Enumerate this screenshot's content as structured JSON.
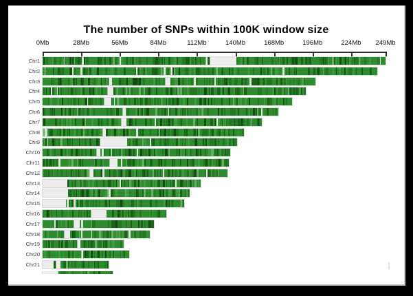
{
  "chart_data": {
    "type": "heatmap",
    "subtype": "chromosome-snp-density",
    "title": "The number of SNPs within 100K window size",
    "orientation": "horizontal",
    "legend": "none",
    "grid": false,
    "value_encoding": "green stripe darkness = SNP count per 100Kb window; light gray = windows with no SNPs",
    "x_axis": {
      "unit": "Mb",
      "range_mb": [
        0,
        249
      ],
      "tick_labels": [
        "0Mb",
        "28Mb",
        "56Mb",
        "84Mb",
        "112Mb",
        "140Mb",
        "168Mb",
        "196Mb",
        "224Mb",
        "249Mb"
      ],
      "tick_mb": [
        0,
        28,
        56,
        84,
        112,
        140,
        168,
        196,
        224,
        249
      ]
    },
    "chromosomes": [
      {
        "label": "Chr1",
        "length_mb": 249,
        "gaps_mb": [
          [
            118.3,
            119.6
          ],
          [
            121,
            140
          ]
        ],
        "clipped": false
      },
      {
        "label": "Chr2",
        "length_mb": 243,
        "gaps_mb": [
          [
            87.5,
            89.5
          ],
          [
            92.5,
            93.8
          ]
        ],
        "clipped": false
      },
      {
        "label": "Chr3",
        "length_mb": 198,
        "gaps_mb": [
          [
            48.5,
            50.2
          ],
          [
            89,
            93
          ]
        ],
        "clipped": false
      },
      {
        "label": "Chr4",
        "length_mb": 191,
        "gaps_mb": [
          [
            46.5,
            51.5
          ]
        ],
        "clipped": false
      },
      {
        "label": "Chr5",
        "length_mb": 181,
        "gaps_mb": [
          [
            45,
            50
          ]
        ],
        "clipped": false
      },
      {
        "label": "Chr6",
        "length_mb": 171,
        "gaps_mb": [
          [
            57.5,
            60.5
          ]
        ],
        "clipped": false
      },
      {
        "label": "Chr7",
        "length_mb": 159,
        "gaps_mb": [
          [
            57.5,
            61
          ]
        ],
        "clipped": false
      },
      {
        "label": "Chr8",
        "length_mb": 146,
        "gaps_mb": [
          [
            43.5,
            46.5
          ]
        ],
        "clipped": false
      },
      {
        "label": "Chr9",
        "length_mb": 141,
        "gaps_mb": [
          [
            42,
            61
          ]
        ],
        "clipped": false
      },
      {
        "label": "Chr10",
        "length_mb": 136,
        "gaps_mb": [
          [
            39,
            42
          ]
        ],
        "clipped": false
      },
      {
        "label": "Chr11",
        "length_mb": 135,
        "gaps_mb": [
          [
            48,
            54
          ]
        ],
        "clipped": false
      },
      {
        "label": "Chr12",
        "length_mb": 134,
        "gaps_mb": [
          [
            34,
            37
          ]
        ],
        "clipped": false
      },
      {
        "label": "Chr13",
        "length_mb": 115,
        "gaps_mb": [
          [
            0,
            18
          ]
        ],
        "clipped": false
      },
      {
        "label": "Chr14",
        "length_mb": 107,
        "gaps_mb": [
          [
            0,
            18.5
          ]
        ],
        "clipped": false
      },
      {
        "label": "Chr15",
        "length_mb": 103,
        "gaps_mb": [
          [
            0,
            16.8
          ],
          [
            17.6,
            19.2
          ]
        ],
        "clipped": false
      },
      {
        "label": "Chr16",
        "length_mb": 90,
        "gaps_mb": [
          [
            35,
            46.5
          ]
        ],
        "clipped": false
      },
      {
        "label": "Chr17",
        "length_mb": 81,
        "gaps_mb": [
          [
            22.5,
            26.5
          ]
        ],
        "clipped": false
      },
      {
        "label": "Chr18",
        "length_mb": 78,
        "gaps_mb": [
          [
            15,
            20.5
          ]
        ],
        "clipped": false
      },
      {
        "label": "Chr19",
        "length_mb": 59,
        "gaps_mb": [
          [
            25,
            27.5
          ]
        ],
        "clipped": false
      },
      {
        "label": "Chr20",
        "length_mb": 63,
        "gaps_mb": [
          [
            27.5,
            28.8
          ]
        ],
        "clipped": false
      },
      {
        "label": "Chr21",
        "length_mb": 48,
        "gaps_mb": [
          [
            0,
            8.5
          ],
          [
            10,
            12.8
          ]
        ],
        "clipped": false
      },
      {
        "label": "",
        "length_mb": 51,
        "gaps_mb": [
          [
            0,
            11.5
          ]
        ],
        "clipped": true
      }
    ]
  },
  "colors": {
    "frame": "#000000",
    "canvas": "#ffffff",
    "axis": "#2f2f2f",
    "chr_label": "#3d3d3d",
    "track_empty": "#ededed",
    "bar_outline": "#d6e0d6",
    "density_base": "#2e8b2e",
    "density_mid": "#247824",
    "density_dark": "#1a611a",
    "density_darkest": "#114d11",
    "density_light": "#66ae66",
    "density_pale_line": "#d7e7d7"
  }
}
